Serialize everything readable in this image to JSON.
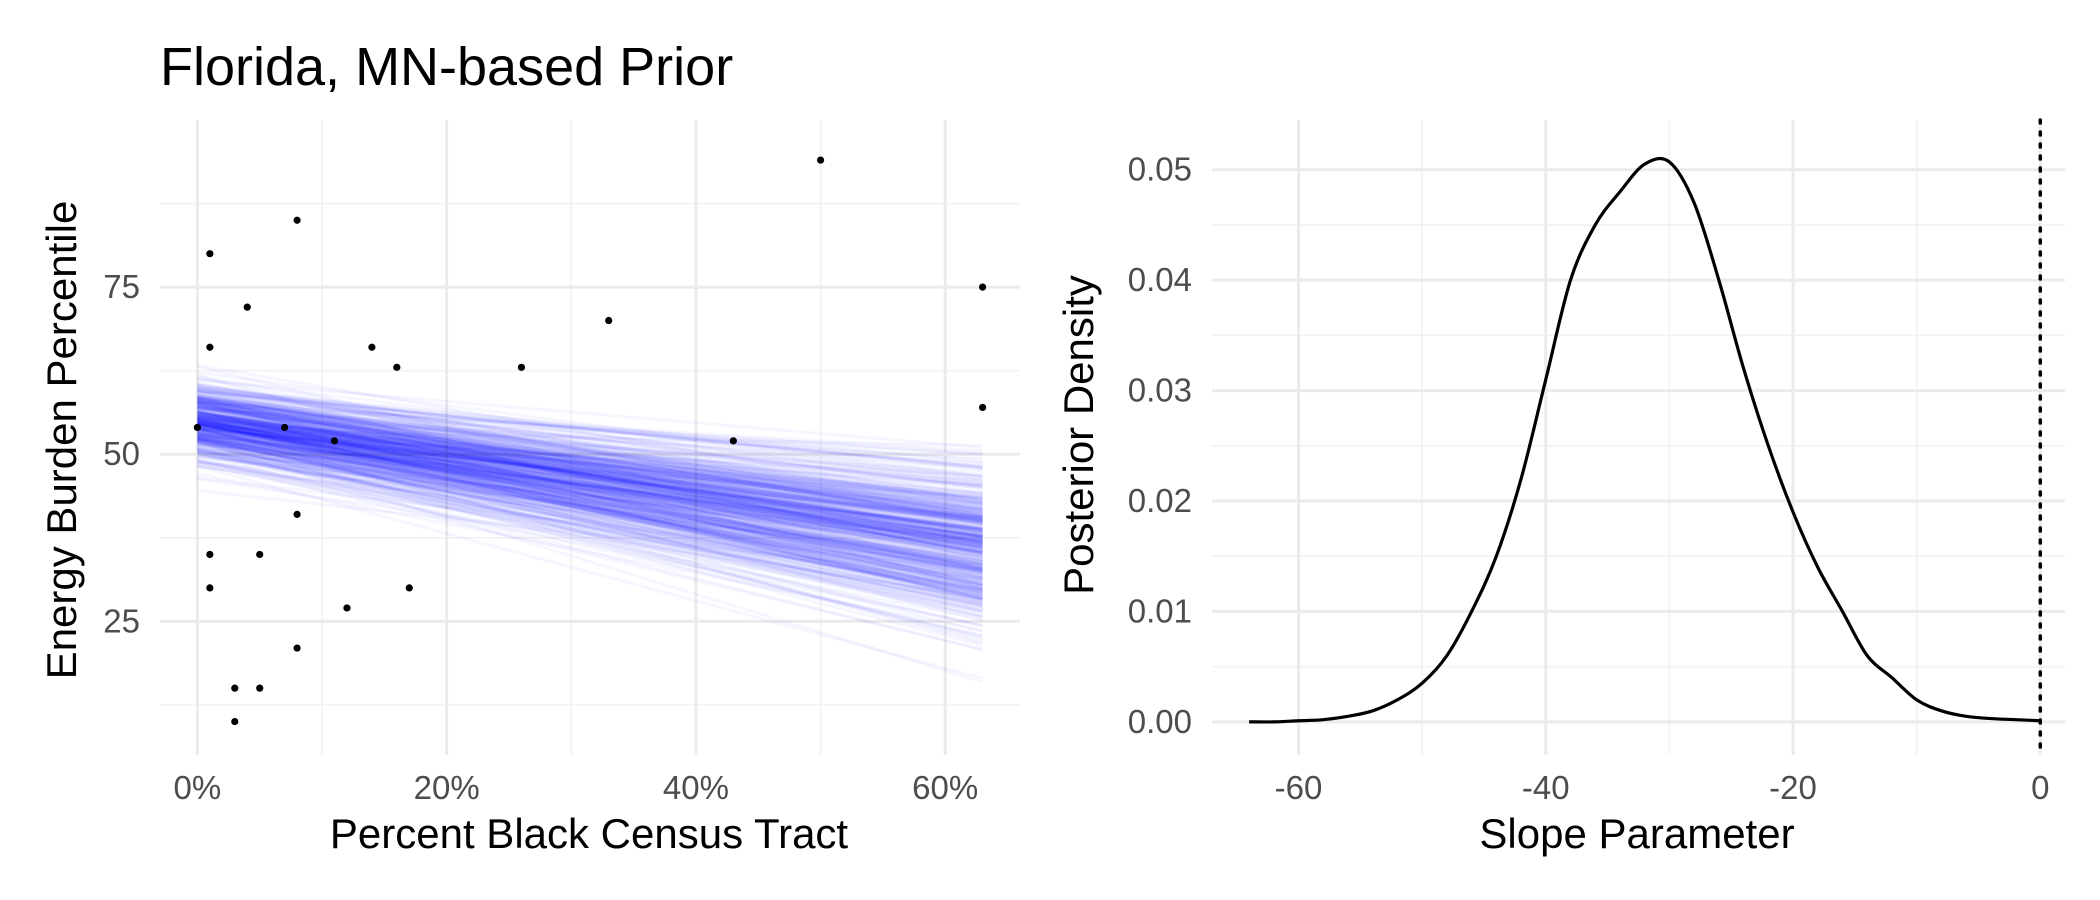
{
  "figure": {
    "title": "Florida, MN-based Prior"
  },
  "chart_data": [
    {
      "type": "scatter",
      "panel": "left",
      "title": "Florida, MN-based Prior",
      "xlabel": "Percent Black Census Tract",
      "ylabel": "Energy Burden Percentile",
      "xlim": [
        -0.03,
        0.66
      ],
      "ylim": [
        5,
        100
      ],
      "x_ticks": [
        0,
        0.2,
        0.4,
        0.6
      ],
      "x_tick_labels": [
        "0%",
        "20%",
        "40%",
        "60%"
      ],
      "y_ticks": [
        25,
        50,
        75
      ],
      "y_tick_labels": [
        "25",
        "50",
        "75"
      ],
      "grid": true,
      "points": {
        "x": [
          0.0,
          0.01,
          0.01,
          0.01,
          0.01,
          0.03,
          0.03,
          0.04,
          0.05,
          0.05,
          0.07,
          0.08,
          0.08,
          0.08,
          0.11,
          0.12,
          0.14,
          0.16,
          0.17,
          0.26,
          0.33,
          0.43,
          0.5,
          0.63,
          0.63
        ],
        "y": [
          54,
          80,
          66,
          35,
          30,
          15,
          10,
          72,
          35,
          15,
          54,
          85,
          41,
          21,
          52,
          27,
          66,
          63,
          30,
          63,
          70,
          52,
          94,
          75,
          57
        ],
        "color": "#000000"
      },
      "posterior_lines": {
        "color": "#0000ff",
        "x_range": [
          0,
          0.63
        ],
        "intercept_mean": 55,
        "intercept_sd": 3,
        "slope_mean": -30,
        "slope_sd": 8,
        "draws": 500
      }
    },
    {
      "type": "line",
      "panel": "right",
      "xlabel": "Slope Parameter",
      "ylabel": "Posterior Density",
      "xlim": [
        -67,
        2
      ],
      "ylim": [
        -0.003,
        0.0545
      ],
      "x_ticks": [
        -60,
        -40,
        -20,
        0
      ],
      "x_tick_labels": [
        "-60",
        "-40",
        "-20",
        "0"
      ],
      "y_ticks": [
        0,
        0.01,
        0.02,
        0.03,
        0.04,
        0.05
      ],
      "y_tick_labels": [
        "0.00",
        "0.01",
        "0.02",
        "0.03",
        "0.04",
        "0.05"
      ],
      "grid": true,
      "series": [
        {
          "color": "#000000",
          "x": [
            -64,
            -62,
            -60,
            -58,
            -56,
            -54,
            -52,
            -50,
            -48,
            -46,
            -44,
            -42,
            -40,
            -38,
            -36,
            -34,
            -32,
            -30,
            -28,
            -26,
            -24,
            -22,
            -20,
            -18,
            -16,
            -14,
            -12,
            -10,
            -8,
            -6,
            -4,
            -2,
            0
          ],
          "y": [
            0.0,
            0.0,
            0.0001,
            0.0002,
            0.0005,
            0.001,
            0.002,
            0.0035,
            0.006,
            0.01,
            0.015,
            0.022,
            0.031,
            0.04,
            0.045,
            0.048,
            0.0505,
            0.0507,
            0.047,
            0.04,
            0.032,
            0.025,
            0.019,
            0.014,
            0.01,
            0.006,
            0.004,
            0.002,
            0.001,
            0.0005,
            0.0003,
            0.0002,
            0.0001
          ]
        }
      ],
      "reference_line": {
        "x": 0,
        "style": "dotted",
        "color": "#000000"
      }
    }
  ]
}
